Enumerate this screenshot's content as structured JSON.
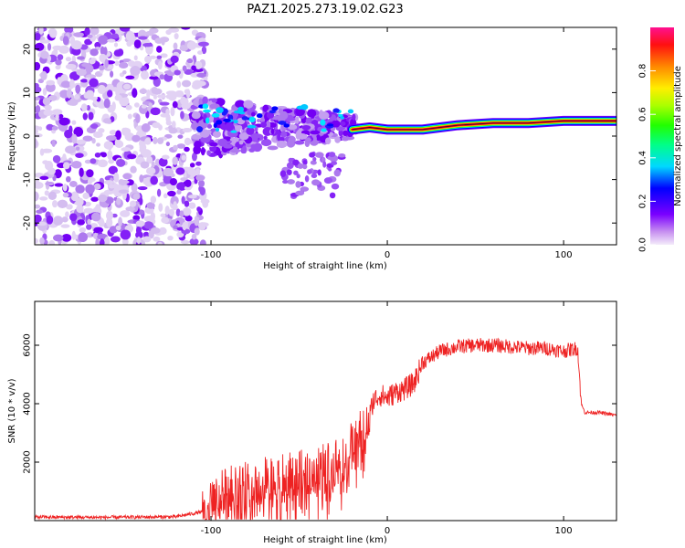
{
  "title": "PAZ1.2025.273.19.02.G23",
  "chart_data": [
    {
      "type": "heatmap",
      "xlabel": "Height of straight line (km)",
      "ylabel": "Frequency (Hz)",
      "xlim": [
        -200,
        130
      ],
      "ylim": [
        -25,
        25
      ],
      "xticks": [
        -100,
        0,
        100
      ],
      "xtick_labels": [
        "-100",
        "0",
        "100"
      ],
      "yticks": [
        -20,
        -10,
        0,
        10,
        20
      ],
      "ytick_labels": [
        "-20",
        "-10",
        "0",
        "10",
        "20"
      ],
      "ridge": {
        "x": [
          -20,
          -10,
          0,
          20,
          40,
          60,
          80,
          100,
          130
        ],
        "freq": [
          1.5,
          2.0,
          1.5,
          1.5,
          2.5,
          3.0,
          3.0,
          3.5,
          3.5
        ]
      },
      "colorbar": {
        "label": "Normalized spectral amplitude",
        "ticks": [
          0.0,
          0.2,
          0.4,
          0.6,
          0.8
        ],
        "tick_labels": [
          "0.0",
          "0.2",
          "0.4",
          "0.6",
          "0.8"
        ],
        "range": [
          0,
          1
        ]
      }
    },
    {
      "type": "line",
      "xlabel": "Height of straight line (km)",
      "ylabel": "SNR (10 * v/v)",
      "xlim": [
        -200,
        130
      ],
      "ylim": [
        0,
        7500
      ],
      "xticks": [
        -100,
        0,
        100
      ],
      "xtick_labels": [
        "-100",
        "0",
        "100"
      ],
      "yticks": [
        2000,
        4000,
        6000
      ],
      "ytick_labels": [
        "2000",
        "4000",
        "6000"
      ],
      "series": [
        {
          "name": "SNR",
          "color": "#ee2222",
          "x": [
            -200,
            -160,
            -120,
            -105,
            -90,
            -70,
            -50,
            -35,
            -25,
            -18,
            -15,
            -12,
            -8,
            -4,
            0,
            5,
            10,
            15,
            20,
            30,
            40,
            50,
            60,
            70,
            80,
            90,
            100,
            108,
            110,
            112,
            120,
            130
          ],
          "y": [
            120,
            110,
            130,
            300,
            1000,
            1300,
            1500,
            1800,
            2200,
            2600,
            3000,
            3100,
            4100,
            4300,
            4200,
            4400,
            4500,
            4700,
            5400,
            5800,
            5950,
            6000,
            6000,
            5950,
            5900,
            5900,
            5800,
            5900,
            4000,
            3700,
            3700,
            3600
          ]
        }
      ]
    }
  ]
}
